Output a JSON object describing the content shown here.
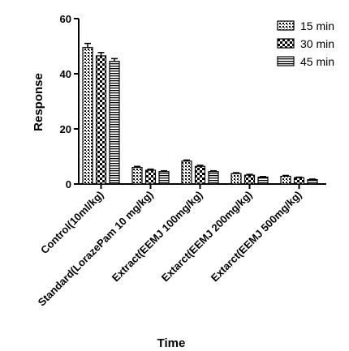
{
  "chart_data": {
    "type": "bar",
    "xlabel": "Time",
    "ylabel": "Response",
    "ylim": [
      0,
      60
    ],
    "yticks": [
      0,
      20,
      40,
      60
    ],
    "grid": false,
    "legend_position": "top-right",
    "categories": [
      "Control(10ml/kg)",
      "Standard(LorazePam 10 mg/kg)",
      "Extract(EEMJ 100mg/kg)",
      "Extarct(EEMJ 200mg/kg)",
      "Extarct(EEMJ 500mg/kg)"
    ],
    "series": [
      {
        "name": "15 min",
        "pattern": "dots",
        "values": [
          49.5,
          6.0,
          8.3,
          3.8,
          2.8
        ],
        "errors": [
          1.5,
          0.4,
          0.4,
          0.3,
          0.3
        ]
      },
      {
        "name": "30 min",
        "pattern": "checker",
        "values": [
          46.5,
          5.0,
          6.4,
          3.2,
          2.3
        ],
        "errors": [
          1.2,
          0.4,
          0.4,
          0.3,
          0.2
        ]
      },
      {
        "name": "45 min",
        "pattern": "hlines",
        "values": [
          44.5,
          4.5,
          4.5,
          2.5,
          1.6
        ],
        "errors": [
          1.0,
          0.3,
          0.3,
          0.2,
          0.2
        ]
      }
    ]
  }
}
